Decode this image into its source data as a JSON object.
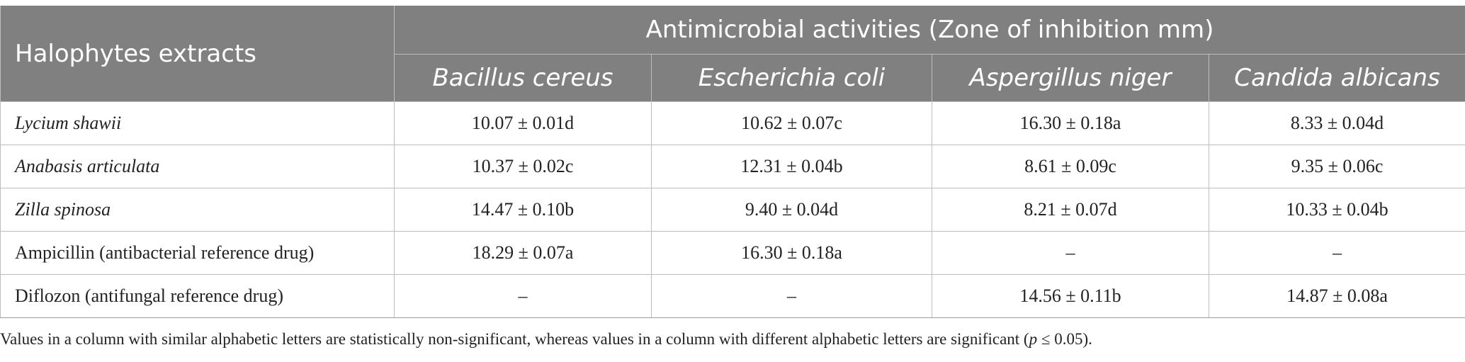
{
  "table": {
    "row_header": "Halophytes extracts",
    "group_header": "Antimicrobial activities (Zone of inhibition mm)",
    "organisms": [
      "Bacillus cereus",
      "Escherichia coli",
      "Aspergillus niger",
      "Candida albicans"
    ],
    "rows": [
      {
        "name": "Lycium shawii",
        "italic": true,
        "values": [
          "10.07 ± 0.01d",
          "10.62 ± 0.07c",
          "16.30 ± 0.18a",
          "8.33 ± 0.04d"
        ]
      },
      {
        "name": "Anabasis articulata",
        "italic": true,
        "values": [
          "10.37 ± 0.02c",
          "12.31 ± 0.04b",
          "8.61 ± 0.09c",
          "9.35 ± 0.06c"
        ]
      },
      {
        "name": "Zilla spinosa",
        "italic": true,
        "values": [
          "14.47 ± 0.10b",
          "9.40 ± 0.04d",
          "8.21 ± 0.07d",
          "10.33 ± 0.04b"
        ]
      },
      {
        "name": "Ampicillin (antibacterial reference drug)",
        "italic": false,
        "values": [
          "18.29 ± 0.07a",
          "16.30 ± 0.18a",
          "–",
          "–"
        ]
      },
      {
        "name": "Diflozon (antifungal reference drug)",
        "italic": false,
        "values": [
          "–",
          "–",
          "14.56 ± 0.11b",
          "14.87 ± 0.08a"
        ]
      }
    ]
  },
  "footnote": {
    "text_before": "Values in a column with similar alphabetic letters are statistically non-significant, whereas values in a column with different alphabetic letters are significant (",
    "p_symbol": "p",
    "text_after": " ≤ 0.05)."
  },
  "colors": {
    "header_bg": "#808080",
    "header_text": "#ffffff",
    "grid_line": "#bdbdbd"
  }
}
